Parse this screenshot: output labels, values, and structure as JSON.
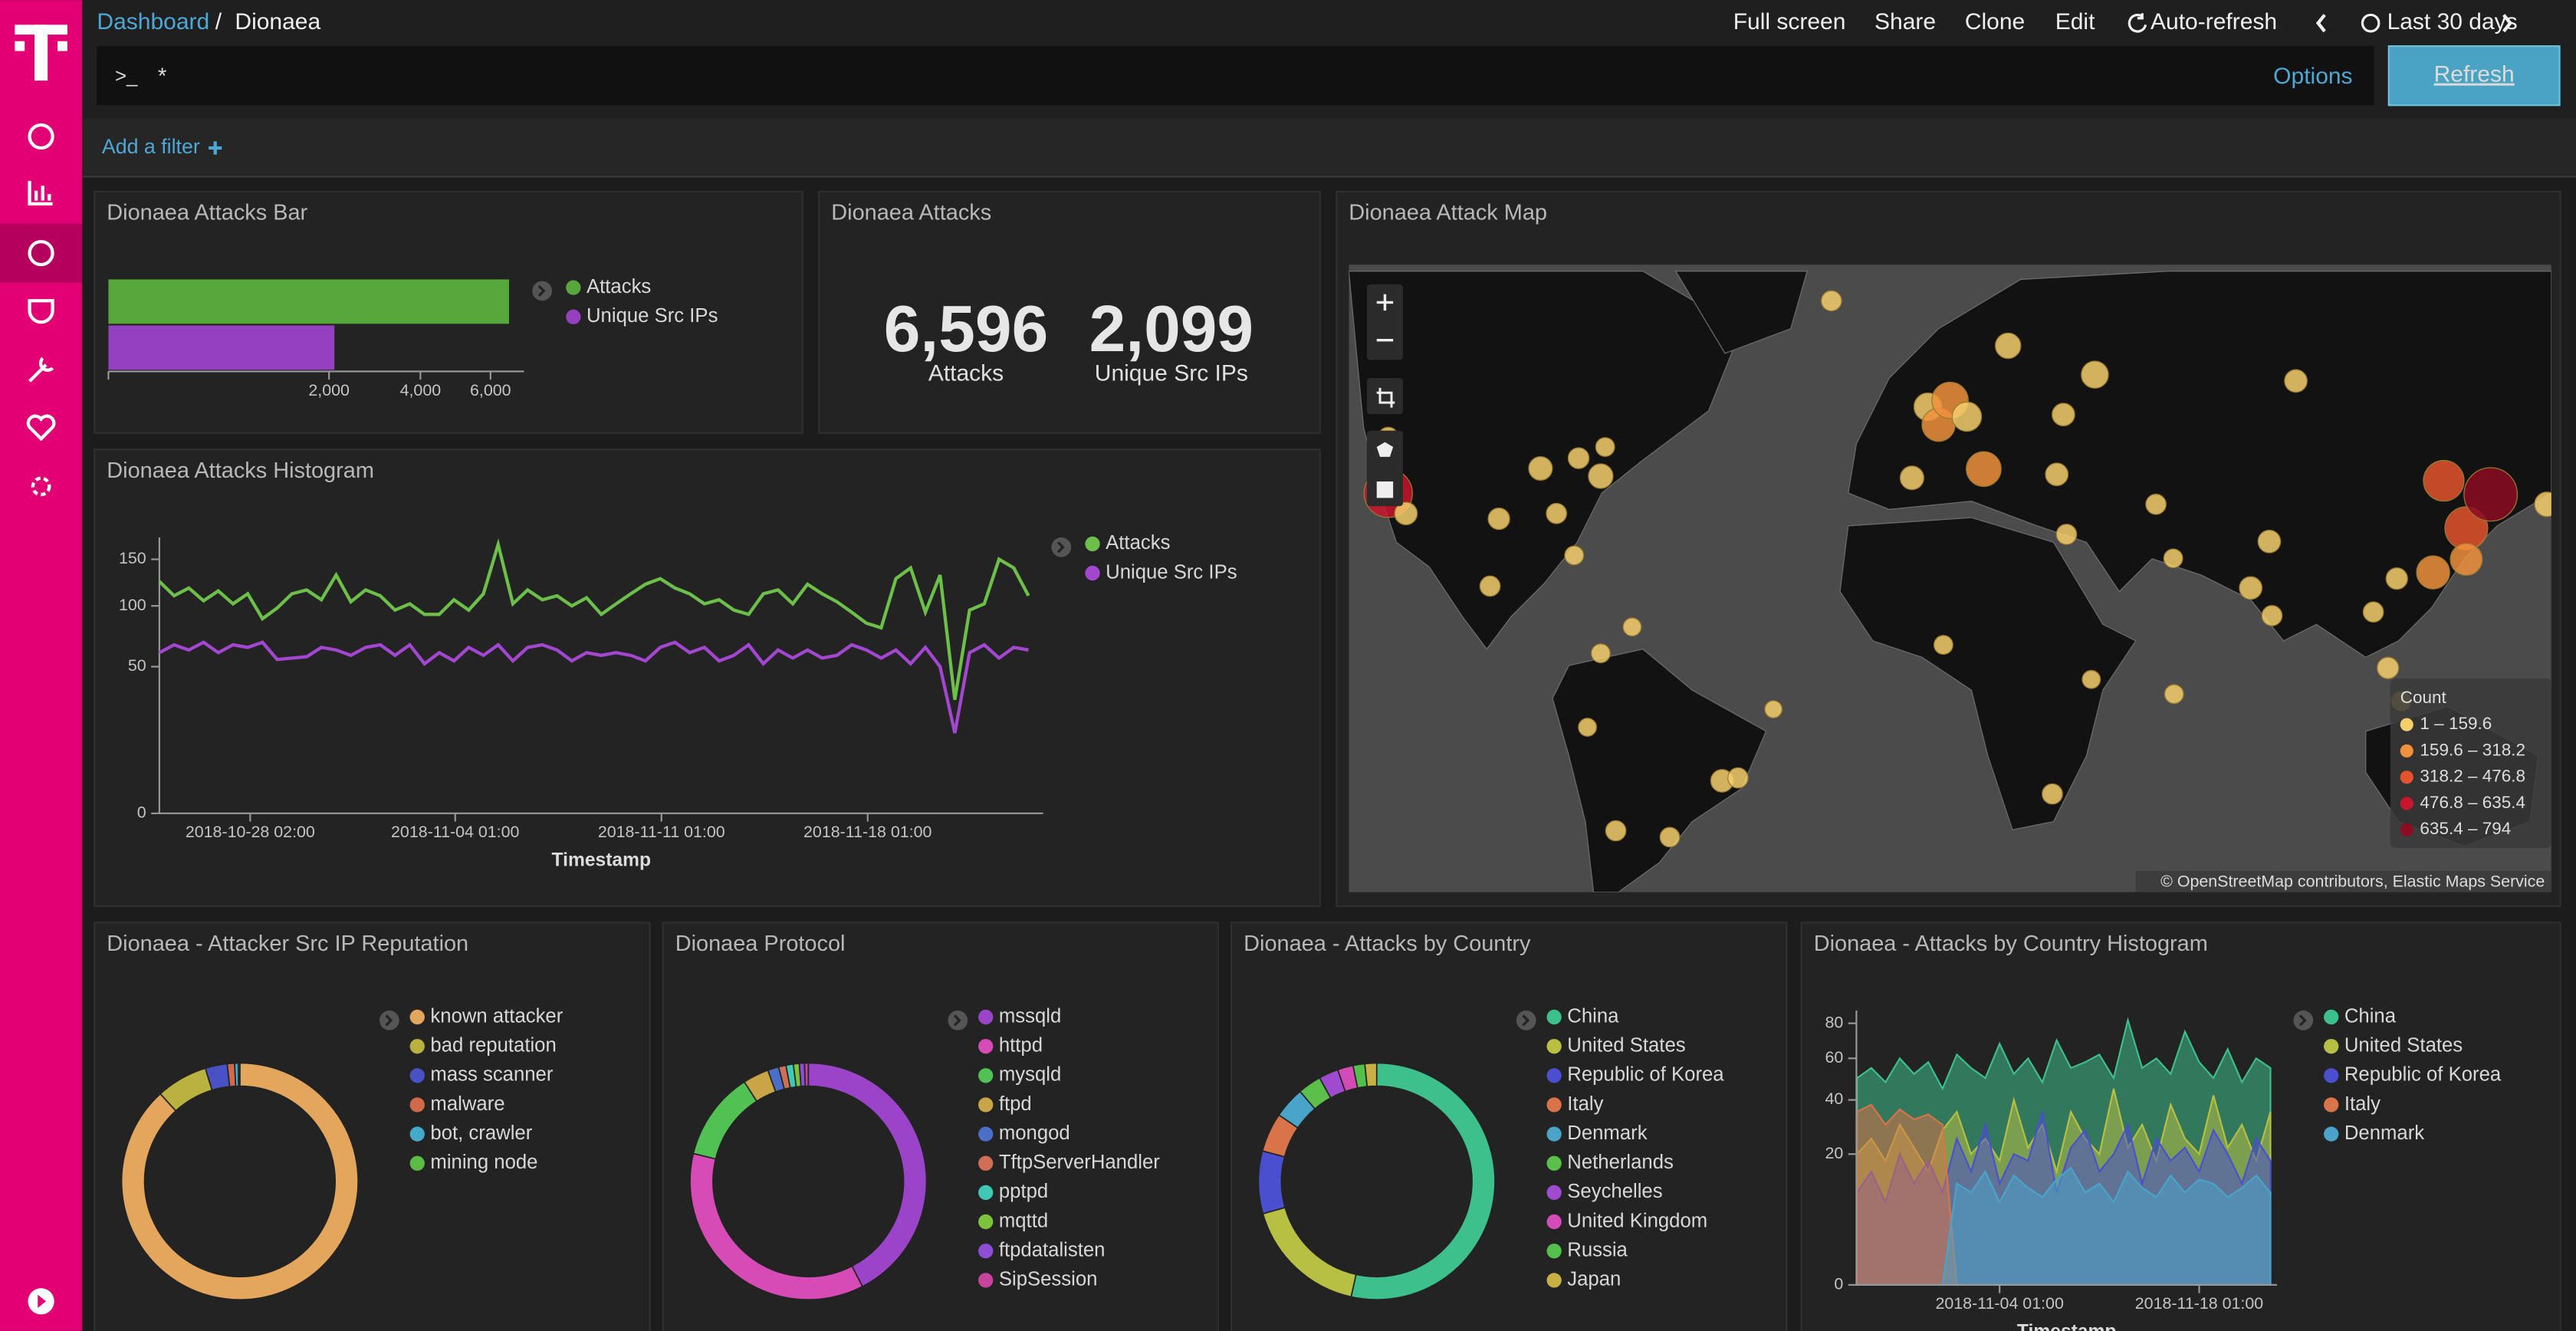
{
  "header": {
    "breadcrumb": [
      "Dashboard",
      "Dionaea"
    ],
    "separator": "/",
    "menu": [
      "Full screen",
      "Share",
      "Clone",
      "Edit",
      "Auto-refresh",
      "Last 30 days"
    ]
  },
  "query": {
    "prompt": ">_",
    "text": "*",
    "options": "Options",
    "refresh": "Refresh"
  },
  "filter": {
    "add": "Add a filter"
  },
  "chart_data": [
    {
      "type": "bar",
      "orientation": "horizontal",
      "title": "Dionaea Attacks Bar",
      "categories": [
        null
      ],
      "series": [
        {
          "name": "Attacks",
          "color": "#57a83c",
          "values": [
            6596
          ]
        },
        {
          "name": "Unique Src IPs",
          "color": "#9441c0",
          "values": [
            2099
          ]
        }
      ],
      "xscale": "sqrt",
      "xlim": [
        0,
        7100
      ],
      "xticks": [
        {
          "value": 2000,
          "label": "2,000"
        },
        {
          "value": 4000,
          "label": "4,000"
        },
        {
          "value": 6000,
          "label": "6,000"
        }
      ]
    },
    {
      "type": "metric",
      "title": "Dionaea Attacks",
      "categories": [
        "Attacks",
        "Unique Src IPs"
      ],
      "values": [
        6596,
        2099
      ],
      "value_labels": [
        "6,596",
        "2,099"
      ]
    },
    {
      "type": "map",
      "title": "Dionaea Attack Map",
      "legend_title": "Count",
      "bins": [
        {
          "min": 1,
          "max": 159.6,
          "label": "1 – 159.6",
          "color": "#f5cf6c"
        },
        {
          "min": 159.6,
          "max": 318.2,
          "label": "159.6 – 318.2",
          "color": "#f0913c"
        },
        {
          "min": 318.2,
          "max": 476.8,
          "label": "318.2 – 476.8",
          "color": "#e3532d"
        },
        {
          "min": 476.8,
          "max": 635.4,
          "label": "476.8 – 635.4",
          "color": "#c7162b"
        },
        {
          "min": 635.4,
          "max": 794,
          "label": "635.4 – 794",
          "color": "#8c0c22"
        }
      ],
      "points": [
        {
          "lon": -122,
          "lat": 37.7,
          "count": 550
        },
        {
          "lon": -118,
          "lat": 34,
          "count": 60
        },
        {
          "lon": -122,
          "lat": 47,
          "count": 40
        },
        {
          "lon": -97,
          "lat": 33,
          "count": 50
        },
        {
          "lon": -87.6,
          "lat": 42,
          "count": 70
        },
        {
          "lon": -74,
          "lat": 40.7,
          "count": 80
        },
        {
          "lon": -84,
          "lat": 34,
          "count": 40
        },
        {
          "lon": -79,
          "lat": 43.7,
          "count": 45
        },
        {
          "lon": -73,
          "lat": 45.5,
          "count": 30
        },
        {
          "lon": -99,
          "lat": 19.4,
          "count": 40
        },
        {
          "lon": -80,
          "lat": 25.8,
          "count": 30
        },
        {
          "lon": -74,
          "lat": 4.6,
          "count": 30
        },
        {
          "lon": -77,
          "lat": -12,
          "count": 25
        },
        {
          "lon": -46.6,
          "lat": -23.5,
          "count": 60
        },
        {
          "lon": -43,
          "lat": -22.9,
          "count": 40
        },
        {
          "lon": -58.4,
          "lat": -34.6,
          "count": 35
        },
        {
          "lon": -70.6,
          "lat": -33.4,
          "count": 40
        },
        {
          "lon": -66.9,
          "lat": 10.5,
          "count": 25
        },
        {
          "lon": -35,
          "lat": -8,
          "count": 20
        },
        {
          "lon": -0.1,
          "lat": 51.5,
          "count": 120
        },
        {
          "lon": 2.3,
          "lat": 48.9,
          "count": 200
        },
        {
          "lon": 4.9,
          "lat": 52.4,
          "count": 260
        },
        {
          "lon": 8.7,
          "lat": 50.1,
          "count": 140
        },
        {
          "lon": 18,
          "lat": 59.3,
          "count": 90
        },
        {
          "lon": 37.6,
          "lat": 55.8,
          "count": 110
        },
        {
          "lon": 30.5,
          "lat": 50.4,
          "count": 60
        },
        {
          "lon": -3.7,
          "lat": 40.4,
          "count": 70
        },
        {
          "lon": 12.5,
          "lat": 41.9,
          "count": 230
        },
        {
          "lon": 29,
          "lat": 41,
          "count": 60
        },
        {
          "lon": -21.9,
          "lat": 64.1,
          "count": 40
        },
        {
          "lon": 51.4,
          "lat": 35.7,
          "count": 40
        },
        {
          "lon": 55.3,
          "lat": 25.2,
          "count": 30
        },
        {
          "lon": 72.8,
          "lat": 19,
          "count": 60
        },
        {
          "lon": 77,
          "lat": 28.6,
          "count": 60
        },
        {
          "lon": 77.6,
          "lat": 13,
          "count": 40
        },
        {
          "lon": 103.8,
          "lat": 1.3,
          "count": 50
        },
        {
          "lon": 100.5,
          "lat": 13.8,
          "count": 40
        },
        {
          "lon": 105.8,
          "lat": 21,
          "count": 50
        },
        {
          "lon": 114,
          "lat": 22.3,
          "count": 200
        },
        {
          "lon": 121.5,
          "lat": 31.2,
          "count": 400
        },
        {
          "lon": 116.4,
          "lat": 39.9,
          "count": 350
        },
        {
          "lon": 127,
          "lat": 37.5,
          "count": 700
        },
        {
          "lon": 139.7,
          "lat": 35.7,
          "count": 80
        },
        {
          "lon": 121.5,
          "lat": 25,
          "count": 180
        },
        {
          "lon": 83,
          "lat": 55,
          "count": 60
        },
        {
          "lon": 106.8,
          "lat": -6.2,
          "count": 40
        },
        {
          "lon": 151.2,
          "lat": -33.9,
          "count": 40
        },
        {
          "lon": 28,
          "lat": -26.2,
          "count": 40
        },
        {
          "lon": 3.4,
          "lat": 6.5,
          "count": 30
        },
        {
          "lon": 31.2,
          "lat": 30,
          "count": 40
        },
        {
          "lon": 36.8,
          "lat": -1.3,
          "count": 25
        },
        {
          "lon": 55.5,
          "lat": -4.6,
          "count": 30
        }
      ],
      "attribution": "© OpenStreetMap contributors, Elastic Maps Service"
    },
    {
      "type": "line",
      "title": "Dionaea Attacks Histogram",
      "x_label": "Timestamp",
      "x": [
        "2018-10-25 00:00",
        "2018-10-25 12:00",
        "2018-10-26 00:00",
        "2018-10-26 12:00",
        "2018-10-27 00:00",
        "2018-10-27 12:00",
        "2018-10-28 00:00",
        "2018-10-28 12:00",
        "2018-10-29 00:00",
        "2018-10-29 12:00",
        "2018-10-30 00:00",
        "2018-10-30 12:00",
        "2018-10-31 00:00",
        "2018-10-31 12:00",
        "2018-11-01 00:00",
        "2018-11-01 12:00",
        "2018-11-02 00:00",
        "2018-11-02 12:00",
        "2018-11-03 00:00",
        "2018-11-03 12:00",
        "2018-11-04 00:00",
        "2018-11-04 12:00",
        "2018-11-05 00:00",
        "2018-11-05 12:00",
        "2018-11-06 00:00",
        "2018-11-06 12:00",
        "2018-11-07 00:00",
        "2018-11-07 12:00",
        "2018-11-08 00:00",
        "2018-11-08 12:00",
        "2018-11-09 00:00",
        "2018-11-09 12:00",
        "2018-11-10 00:00",
        "2018-11-10 12:00",
        "2018-11-11 00:00",
        "2018-11-11 12:00",
        "2018-11-12 00:00",
        "2018-11-12 12:00",
        "2018-11-13 00:00",
        "2018-11-13 12:00",
        "2018-11-14 00:00",
        "2018-11-14 12:00",
        "2018-11-15 00:00",
        "2018-11-15 12:00",
        "2018-11-16 00:00",
        "2018-11-16 12:00",
        "2018-11-17 00:00",
        "2018-11-17 12:00",
        "2018-11-18 00:00",
        "2018-11-18 12:00",
        "2018-11-19 00:00",
        "2018-11-19 12:00",
        "2018-11-20 00:00",
        "2018-11-20 12:00",
        "2018-11-21 00:00",
        "2018-11-21 12:00",
        "2018-11-22 00:00",
        "2018-11-22 12:00",
        "2018-11-23 00:00",
        "2018-11-23 12:00"
      ],
      "series": [
        {
          "name": "Attacks",
          "color": "#6cc04a",
          "values": [
            125,
            110,
            118,
            105,
            115,
            102,
            112,
            88,
            98,
            112,
            116,
            106,
            132,
            104,
            116,
            110,
            96,
            102,
            92,
            92,
            106,
            96,
            112,
            168,
            102,
            116,
            106,
            110,
            100,
            108,
            92,
            102,
            112,
            122,
            128,
            118,
            112,
            102,
            106,
            96,
            92,
            112,
            116,
            102,
            122,
            112,
            104,
            94,
            84,
            80,
            128,
            140,
            94,
            132,
            30,
            96,
            102,
            150,
            140,
            110
          ]
        },
        {
          "name": "Unique Src IPs",
          "color": "#a347d1",
          "values": [
            60,
            66,
            62,
            68,
            60,
            66,
            64,
            68,
            55,
            56,
            57,
            64,
            62,
            58,
            64,
            66,
            58,
            66,
            52,
            60,
            54,
            64,
            58,
            66,
            54,
            64,
            66,
            62,
            54,
            60,
            58,
            60,
            58,
            54,
            64,
            68,
            60,
            64,
            54,
            58,
            66,
            52,
            62,
            56,
            62,
            56,
            58,
            66,
            62,
            56,
            62,
            52,
            64,
            50,
            15,
            60,
            66,
            56,
            64,
            62
          ]
        }
      ],
      "xlim": [
        "2018-10-25 00:00",
        "2018-11-24 00:00"
      ],
      "xticks": [
        "2018-10-28 02:00",
        "2018-11-04 01:00",
        "2018-11-11 01:00",
        "2018-11-18 01:00"
      ],
      "yscale": "sqrt",
      "ylim": [
        0,
        177
      ],
      "yticks": [
        0,
        50,
        100,
        150
      ]
    },
    {
      "type": "pie",
      "donut": true,
      "title": "Dionaea - Attacker Src IP Reputation",
      "categories": [
        "known attacker",
        "bad reputation",
        "mass scanner",
        "malware",
        "bot, crawler",
        "mining node"
      ],
      "values": [
        88,
        7,
        3,
        1,
        0.5,
        0.2
      ],
      "colors": [
        "#e3a65c",
        "#b9b23e",
        "#4852c4",
        "#d2694a",
        "#45a9c9",
        "#5bbd45"
      ]
    },
    {
      "type": "pie",
      "donut": true,
      "title": "Dionaea Protocol",
      "categories": [
        "mssqld",
        "httpd",
        "mysqld",
        "ftpd",
        "mongod",
        "TftpServerHandler",
        "pptpd",
        "mqttd",
        "ftpdatalisten",
        "SipSession"
      ],
      "values": [
        42,
        36,
        12,
        3.5,
        1.5,
        1,
        1,
        0.8,
        0.7,
        0.5
      ],
      "colors": [
        "#9b44c9",
        "#d64bb6",
        "#52c153",
        "#c9a547",
        "#4b6fc9",
        "#d06f56",
        "#3fc8b4",
        "#7dc23c",
        "#8f4dd6",
        "#c6449c"
      ]
    },
    {
      "type": "pie",
      "donut": true,
      "title": "Dionaea - Attacks by Country",
      "categories": [
        "China",
        "United States",
        "Republic of Korea",
        "Italy",
        "Denmark",
        "Netherlands",
        "Seychelles",
        "United Kingdom",
        "Russia",
        "Japan"
      ],
      "values": [
        50,
        16,
        8,
        5,
        4,
        3,
        2.5,
        2,
        1.5,
        1.5
      ],
      "colors": [
        "#3ec08d",
        "#b8c043",
        "#4a4fd0",
        "#d8734a",
        "#4aa3c9",
        "#5bc04a",
        "#9f4bcf",
        "#d24bb6",
        "#53c04c",
        "#c9b043"
      ]
    },
    {
      "type": "area",
      "mode": "overlap",
      "title": "Dionaea - Attacks by Country Histogram",
      "x_label": "Timestamp",
      "x": [
        "2018-10-25 01:00",
        "2018-10-26 01:00",
        "2018-10-27 01:00",
        "2018-10-28 01:00",
        "2018-10-29 01:00",
        "2018-10-30 01:00",
        "2018-10-31 01:00",
        "2018-11-01 01:00",
        "2018-11-02 01:00",
        "2018-11-03 01:00",
        "2018-11-04 01:00",
        "2018-11-05 01:00",
        "2018-11-06 01:00",
        "2018-11-07 01:00",
        "2018-11-08 01:00",
        "2018-11-09 01:00",
        "2018-11-10 01:00",
        "2018-11-11 01:00",
        "2018-11-12 01:00",
        "2018-11-13 01:00",
        "2018-11-14 01:00",
        "2018-11-15 01:00",
        "2018-11-16 01:00",
        "2018-11-17 01:00",
        "2018-11-18 01:00",
        "2018-11-19 01:00",
        "2018-11-20 01:00",
        "2018-11-21 01:00",
        "2018-11-22 01:00",
        "2018-11-23 01:00"
      ],
      "series": [
        {
          "name": "China",
          "color": "#3ec08d",
          "values": [
            50,
            55,
            48,
            60,
            52,
            58,
            45,
            62,
            55,
            50,
            68,
            52,
            60,
            48,
            70,
            55,
            58,
            62,
            50,
            82,
            55,
            60,
            52,
            75,
            58,
            50,
            65,
            48,
            60,
            55
          ]
        },
        {
          "name": "United States",
          "color": "#b8c043",
          "values": [
            20,
            25,
            18,
            30,
            22,
            15,
            28,
            35,
            20,
            25,
            18,
            40,
            22,
            30,
            15,
            35,
            25,
            20,
            45,
            22,
            30,
            18,
            38,
            25,
            20,
            42,
            22,
            30,
            18,
            35
          ]
        },
        {
          "name": "Republic of Korea",
          "color": "#4a4fd0",
          "values": [
            10,
            15,
            8,
            20,
            12,
            18,
            10,
            25,
            15,
            30,
            12,
            20,
            18,
            35,
            10,
            22,
            28,
            15,
            20,
            30,
            12,
            25,
            18,
            22,
            15,
            28,
            20,
            12,
            25,
            18
          ]
        },
        {
          "name": "Italy",
          "color": "#d8734a",
          "values": [
            35,
            38,
            30,
            36,
            32,
            34,
            30,
            0,
            0,
            0,
            0,
            0,
            0,
            0,
            0,
            0,
            0,
            0,
            0,
            0,
            0,
            0,
            0,
            0,
            0,
            0,
            0,
            0,
            0,
            0
          ]
        },
        {
          "name": "Denmark",
          "color": "#4aa3c9",
          "values": [
            0,
            0,
            0,
            0,
            0,
            0,
            0,
            12,
            10,
            15,
            8,
            14,
            11,
            9,
            13,
            16,
            10,
            12,
            8,
            15,
            11,
            9,
            14,
            10,
            13,
            12,
            9,
            11,
            14,
            10
          ]
        }
      ],
      "xlim": [
        "2018-10-25 00:00",
        "2018-11-23 12:00"
      ],
      "xticks": [
        "2018-11-04 01:00",
        "2018-11-18 01:00"
      ],
      "yscale": "sqrt",
      "ylim": [
        0,
        88
      ],
      "yticks": [
        0,
        20,
        40,
        60,
        80
      ]
    }
  ]
}
